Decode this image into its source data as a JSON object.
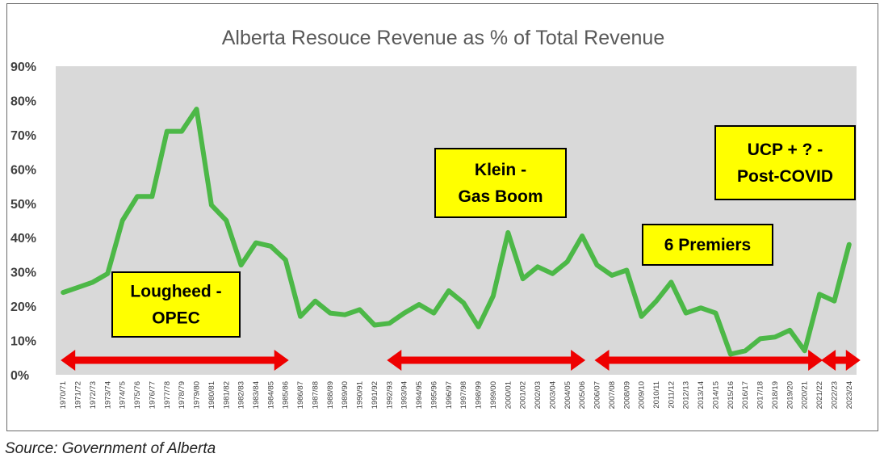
{
  "source": "Source: Government of Alberta",
  "colors": {
    "plot_bg": "#d9d9d9",
    "line": "#4cb847",
    "arrow": "#ee0000",
    "box_fill": "#ffff00",
    "box_border": "#000000",
    "title": "#595959"
  },
  "chart_data": {
    "type": "line",
    "title": "Alberta Resouce Revenue as % of Total Revenue",
    "xlabel": "",
    "ylabel": "",
    "ylim": [
      0,
      90
    ],
    "yticks": [
      "0%",
      "10%",
      "20%",
      "30%",
      "40%",
      "50%",
      "60%",
      "70%",
      "80%",
      "90%"
    ],
    "grid": false,
    "categories": [
      "1970/71",
      "1971/72",
      "1972/73",
      "1973/74",
      "1974/75",
      "1975/76",
      "1976/77",
      "1977/78",
      "1978/79",
      "1979/80",
      "1980/81",
      "1981/82",
      "1982/83",
      "1983/84",
      "1984/85",
      "1985/86",
      "1986/87",
      "1987/88",
      "1988/89",
      "1989/90",
      "1990/91",
      "1991/92",
      "1992/93",
      "1993/94",
      "1994/95",
      "1995/96",
      "1996/97",
      "1997/98",
      "1998/99",
      "1999/00",
      "2000/01",
      "2001/02",
      "2002/03",
      "2003/04",
      "2004/05",
      "2005/06",
      "2006/07",
      "2007/08",
      "2008/09",
      "2009/10",
      "2010/11",
      "2011/12",
      "2012/13",
      "2013/14",
      "2014/15",
      "2015/16",
      "2016/17",
      "2017/18",
      "2018/19",
      "2019/20",
      "2020/21",
      "2021/22",
      "2022/23",
      "2023/24"
    ],
    "series": [
      {
        "values": [
          24,
          25.5,
          27,
          29.5,
          45,
          52,
          52,
          71,
          71,
          77.5,
          49.5,
          45,
          32,
          38.5,
          37.5,
          33.5,
          17,
          21.5,
          18,
          17.5,
          19,
          14.5,
          15,
          18,
          20.5,
          18,
          24.5,
          21,
          14,
          23,
          41.5,
          28,
          31.5,
          29.5,
          33,
          40.5,
          32,
          29,
          30.5,
          17,
          21.5,
          27,
          18,
          19.5,
          18,
          6,
          7,
          10.5,
          11,
          13,
          7,
          23.5,
          21.5,
          38
        ]
      }
    ],
    "annotations": [
      {
        "label": "Lougheed - OPEC",
        "lines": [
          "Lougheed -",
          "OPEC"
        ],
        "arrow_from": "1970/71",
        "arrow_to": "1985/86"
      },
      {
        "label": "Klein - Gas Boom",
        "lines": [
          "Klein -",
          "Gas Boom"
        ],
        "arrow_from": "1992/93",
        "arrow_to": "2005/06"
      },
      {
        "label": "6 Premiers",
        "lines": [
          "6 Premiers"
        ],
        "arrow_from": "2006/07",
        "arrow_to": "2021/22"
      },
      {
        "label": "UCP + ? - Post-COVID",
        "lines": [
          "UCP + ? -",
          "Post-COVID"
        ],
        "arrow_from": "2021/22",
        "arrow_to": "2023/24"
      }
    ]
  }
}
